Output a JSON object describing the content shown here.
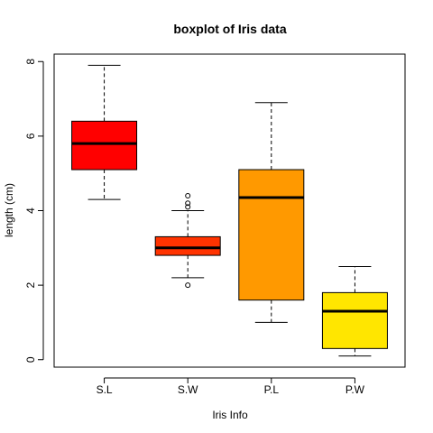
{
  "chart_data": {
    "type": "boxplot",
    "title": "boxplot of Iris data",
    "xlabel": "Iris Info",
    "ylabel": "length (cm)",
    "ylim": [
      -0.2,
      8.2
    ],
    "yticks": [
      0,
      2,
      4,
      6,
      8
    ],
    "categories": [
      "S.L",
      "S.W",
      "P.L",
      "P.W"
    ],
    "colors": [
      "#ff0000",
      "#ff3300",
      "#ff9900",
      "#ffe600"
    ],
    "boxes": [
      {
        "name": "S.L",
        "whisker_low": 4.3,
        "q1": 5.1,
        "median": 5.8,
        "q3": 6.4,
        "whisker_high": 7.9,
        "outliers": []
      },
      {
        "name": "S.W",
        "whisker_low": 2.2,
        "q1": 2.8,
        "median": 3.0,
        "q3": 3.3,
        "whisker_high": 4.0,
        "outliers": [
          2.0,
          4.1,
          4.2,
          4.4
        ]
      },
      {
        "name": "P.L",
        "whisker_low": 1.0,
        "q1": 1.6,
        "median": 4.35,
        "q3": 5.1,
        "whisker_high": 6.9,
        "outliers": []
      },
      {
        "name": "P.W",
        "whisker_low": 0.1,
        "q1": 0.3,
        "median": 1.3,
        "q3": 1.8,
        "whisker_high": 2.5,
        "outliers": []
      }
    ]
  }
}
